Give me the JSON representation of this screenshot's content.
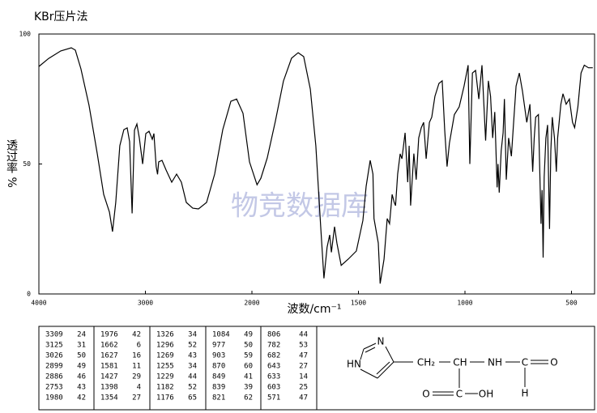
{
  "chart_data": {
    "type": "line",
    "title": "KBr压片法",
    "x_label": "波数/cm⁻¹",
    "y_label": "透过率 %",
    "watermark": "物竞数据库",
    "color": "#000000",
    "x_scale": "even-ticks",
    "xlim": [
      4000,
      400
    ],
    "xticks": [
      4000,
      3000,
      2000,
      1500,
      1000,
      500
    ],
    "ylim": [
      0,
      100
    ],
    "yticks": [
      0,
      50,
      100
    ],
    "x": [
      4000,
      3909,
      3795,
      3696,
      3658,
      3605,
      3529,
      3452,
      3392,
      3338,
      3309,
      3278,
      3240,
      3202,
      3171,
      3148,
      3125,
      3103,
      3080,
      3057,
      3026,
      2996,
      2966,
      2935,
      2920,
      2899,
      2886,
      2875,
      2844,
      2806,
      2753,
      2707,
      2662,
      2616,
      2555,
      2502,
      2426,
      2350,
      2274,
      2198,
      2144,
      2084,
      2023,
      1976,
      1958,
      1928,
      1890,
      1852,
      1814,
      1783,
      1757,
      1726,
      1700,
      1677,
      1662,
      1647,
      1635,
      1627,
      1612,
      1601,
      1581,
      1548,
      1510,
      1479,
      1464,
      1445,
      1432,
      1427,
      1407,
      1398,
      1380,
      1365,
      1354,
      1342,
      1332,
      1326,
      1316,
      1304,
      1296,
      1281,
      1269,
      1262,
      1255,
      1240,
      1229,
      1217,
      1205,
      1194,
      1182,
      1167,
      1156,
      1141,
      1122,
      1107,
      1095,
      1084,
      1073,
      1050,
      1027,
      1004,
      985,
      977,
      965,
      950,
      935,
      920,
      903,
      890,
      880,
      870,
      860,
      849,
      845,
      839,
      830,
      821,
      815,
      806,
      795,
      782,
      770,
      760,
      745,
      730,
      710,
      695,
      682,
      675,
      668,
      655,
      643,
      638,
      633,
      628,
      620,
      612,
      603,
      597,
      590,
      580,
      571,
      565,
      550,
      540,
      525,
      510,
      495,
      485,
      470,
      455,
      440,
      420,
      400
    ],
    "values": [
      87.5,
      90.6,
      93.5,
      94.7,
      93.8,
      86.6,
      72.6,
      53.9,
      38.3,
      31.5,
      24,
      35.2,
      57,
      63.2,
      63.9,
      58.6,
      31,
      63,
      65.4,
      60,
      50,
      61.7,
      62.6,
      59.5,
      61.7,
      49,
      46,
      50.8,
      51.4,
      47.7,
      43,
      46.1,
      43,
      35.2,
      33,
      32.7,
      35.2,
      46.1,
      63.2,
      74.1,
      75,
      69.5,
      50.8,
      42,
      44.5,
      52.3,
      66.4,
      81.9,
      90.7,
      92.8,
      91.3,
      78.8,
      57,
      25.9,
      6,
      18,
      22.7,
      16,
      25.9,
      19.6,
      11,
      13.4,
      16.5,
      28.3,
      41.4,
      51.4,
      46.1,
      29,
      19.6,
      4,
      13.4,
      29,
      27,
      38.3,
      35.2,
      34,
      46.1,
      53.9,
      52,
      62,
      43,
      57,
      34,
      54,
      44,
      60,
      64,
      66,
      52,
      66,
      68,
      76,
      81,
      82,
      63,
      49,
      58,
      69,
      72,
      80,
      88,
      50,
      85,
      86,
      75,
      88,
      59,
      82,
      76,
      60,
      70,
      41,
      50,
      39,
      55,
      62,
      75,
      44,
      60,
      53,
      68,
      80,
      85,
      78,
      66,
      73,
      47,
      60,
      68,
      69,
      27,
      40,
      14,
      45,
      60,
      65,
      25,
      55,
      68,
      60,
      47,
      60,
      73,
      77,
      73,
      75,
      66,
      64,
      72,
      85,
      88,
      87,
      87
    ]
  },
  "table": {
    "rows": [
      [
        3309,
        24,
        1976,
        42,
        1326,
        34,
        1084,
        49,
        806,
        44
      ],
      [
        3125,
        31,
        1662,
        6,
        1296,
        52,
        977,
        50,
        782,
        53
      ],
      [
        3026,
        50,
        1627,
        16,
        1269,
        43,
        903,
        59,
        682,
        47
      ],
      [
        2899,
        49,
        1581,
        11,
        1255,
        34,
        870,
        60,
        643,
        27
      ],
      [
        2886,
        46,
        1427,
        29,
        1229,
        44,
        849,
        41,
        633,
        14
      ],
      [
        2753,
        43,
        1398,
        4,
        1182,
        52,
        839,
        39,
        603,
        25
      ],
      [
        1980,
        42,
        1354,
        27,
        1176,
        65,
        821,
        62,
        571,
        47
      ]
    ]
  },
  "structure": {
    "atoms": [
      "N",
      "HN",
      "CH₂",
      "CH",
      "NH",
      "C",
      "O",
      "H",
      "O",
      "C",
      "OH"
    ]
  }
}
